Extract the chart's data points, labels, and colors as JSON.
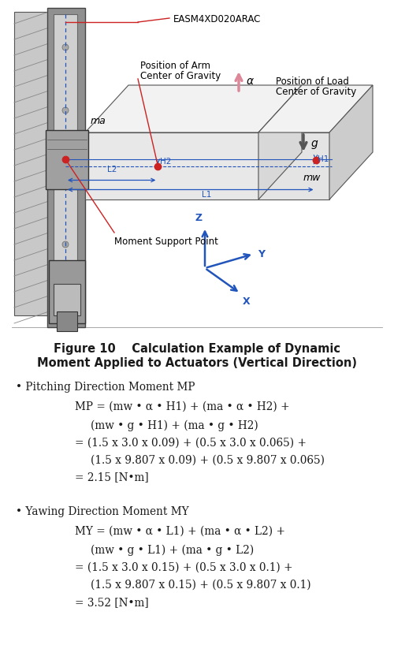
{
  "bg_color": "#ffffff",
  "text_color": "#1a1a1a",
  "fig_width": 5.0,
  "fig_height": 8.18,
  "dpi": 100,
  "caption_line1": "Figure 10    Calculation Example of Dynamic",
  "caption_line2": "Moment Applied to Actuators (Vertical Direction)",
  "caption_fontsize": 10.5,
  "body_fontsize": 9.8,
  "body_fontfamily": "DejaVu Serif",
  "pitch_header": "• Pitching Direction Moment MP",
  "pitch_eq1": "MP = (mw • α • H1) + (ma • α • H2) +",
  "pitch_eq2": "(mw • g • H1) + (ma • g • H2)",
  "pitch_eq3": "= (1.5 x 3.0 x 0.09) + (0.5 x 3.0 x 0.065) +",
  "pitch_eq4": "(1.5 x 9.807 x 0.09) + (0.5 x 9.807 x 0.065)",
  "pitch_eq5": "= 2.15 [N•m]",
  "yaw_header": "• Yawing Direction Moment MY",
  "yaw_eq1": "MY = (mw • α • L1) + (ma • α • L2) +",
  "yaw_eq2": "(mw • g • L1) + (ma • g • L2)",
  "yaw_eq3": "= (1.5 x 3.0 x 0.15) + (0.5 x 3.0 x 0.1) +",
  "yaw_eq4": "(1.5 x 9.807 x 0.15) + (0.5 x 9.807 x 0.1)",
  "yaw_eq5": "= 3.52 [N•m]",
  "diagram_label_easm": "EASM4XD020ARAC",
  "diagram_label_arm_cog1": "Position of Arm",
  "diagram_label_arm_cog2": "Center of Gravity",
  "diagram_label_load_cog1": "Position of Load",
  "diagram_label_load_cog2": "Center of Gravity",
  "diagram_label_ma": "ma",
  "diagram_label_mw": "mw",
  "diagram_label_H2": "H2",
  "diagram_label_H1": "H1",
  "diagram_label_L2": "L2",
  "diagram_label_L1": "L1",
  "diagram_label_moment": "Moment Support Point",
  "diagram_label_alpha": "α",
  "diagram_label_g": "g",
  "wall_color": "#c8c8c8",
  "wall_hatch_color": "#888888",
  "actuator_body_color": "#909090",
  "actuator_rail_color": "#d0d0d0",
  "carriage_color": "#a0a0a0",
  "box_face_color": "#e8e8e8",
  "box_top_color": "#f2f2f2",
  "box_side_color": "#d8d8d8",
  "arm_box_color": "#e4e4e4",
  "arm_side_color": "#cccccc",
  "line_color": "#555555",
  "blue_color": "#2255bb",
  "red_color": "#cc2222",
  "arrow_alpha_color": "#dd8888",
  "arrow_g_color": "#666666"
}
